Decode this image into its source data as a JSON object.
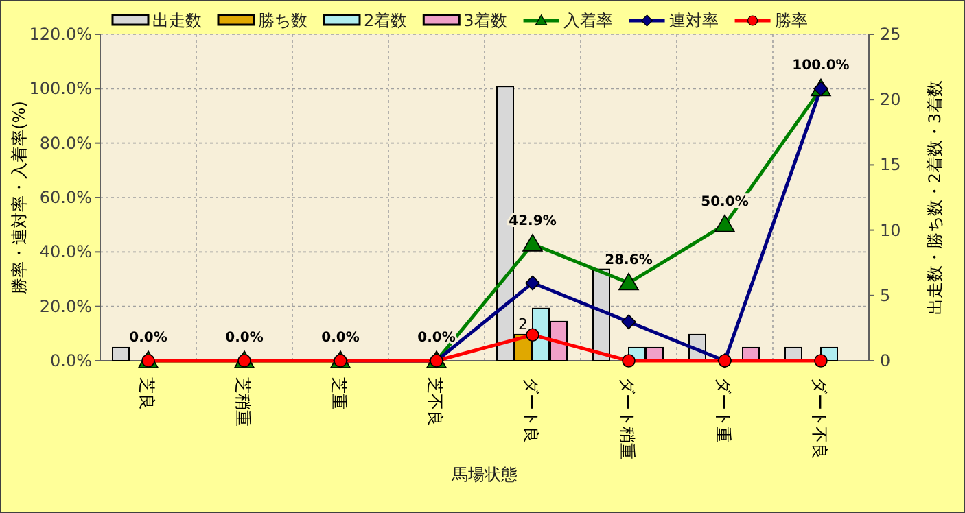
{
  "chart_data": {
    "type": "bar",
    "xlabel": "馬場状態",
    "ylabel": "勝率・連対率・入着率(%)",
    "y2label": "出走数・勝ち数・2着数・3着数",
    "categories": [
      "芝良",
      "芝稍重",
      "芝重",
      "芝不良",
      "ダート良",
      "ダート稍重",
      "ダート重",
      "ダート不良"
    ],
    "series": [
      {
        "name": "出走数",
        "axis": "y2",
        "color": "#d8d8d8",
        "values": [
          1,
          0,
          0,
          0,
          21,
          7,
          2,
          1
        ]
      },
      {
        "name": "勝ち数",
        "axis": "y2",
        "color": "#e0a800",
        "values": [
          0,
          0,
          0,
          0,
          2,
          0,
          0,
          0
        ],
        "value_labels": [
          null,
          null,
          null,
          null,
          "2",
          null,
          null,
          null
        ]
      },
      {
        "name": "2着数",
        "axis": "y2",
        "color": "#b0eef0",
        "values": [
          0,
          0,
          0,
          0,
          4,
          1,
          0,
          1
        ]
      },
      {
        "name": "3着数",
        "axis": "y2",
        "color": "#f0a0c8",
        "values": [
          0,
          0,
          0,
          0,
          3,
          1,
          1,
          0
        ]
      },
      {
        "name": "入着率",
        "type": "line",
        "color": "#008000",
        "marker": "triangle",
        "values": [
          0,
          0,
          0,
          0,
          42.9,
          28.6,
          50,
          100
        ],
        "value_labels": [
          "0.0%",
          "0.0%",
          "0.0%",
          "0.0%",
          "42.9%",
          "28.6%",
          "50.0%",
          "100.0%"
        ]
      },
      {
        "name": "連対率",
        "type": "line",
        "color": "#000080",
        "marker": "diamond",
        "values": [
          null,
          null,
          0,
          0,
          28.6,
          14.3,
          0,
          100
        ]
      },
      {
        "name": "勝率",
        "type": "line",
        "color": "#ff0000",
        "marker": "circle",
        "values": [
          0,
          0,
          0,
          0,
          9.5,
          0,
          0,
          0
        ]
      }
    ],
    "ylim": [
      0,
      120
    ],
    "yticks": [
      {
        "value": 0,
        "label": "0.0%"
      },
      {
        "value": 20,
        "label": "20.0%"
      },
      {
        "value": 40,
        "label": "40.0%"
      },
      {
        "value": 60,
        "label": "60.0%"
      },
      {
        "value": 80,
        "label": "80.0%"
      },
      {
        "value": 100,
        "label": "100.0%"
      },
      {
        "value": 120,
        "label": "120.0%"
      }
    ],
    "y2lim": [
      0,
      25
    ],
    "y2ticks": [
      0,
      5,
      10,
      15,
      20,
      25
    ],
    "grid": true,
    "legend": "top"
  }
}
